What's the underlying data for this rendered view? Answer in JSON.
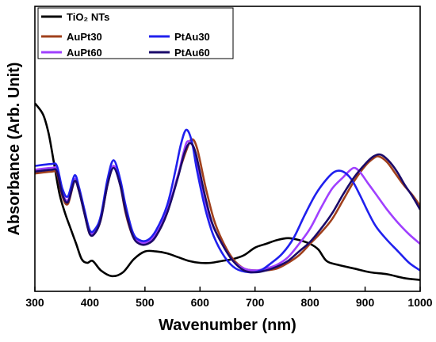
{
  "chart_data": {
    "type": "line",
    "title": "",
    "xlabel": "Wavenumber (nm)",
    "ylabel": "Absorbance (Arb. Unit)",
    "xlim": [
      300,
      1000
    ],
    "ylim": [
      0,
      1
    ],
    "xticks": [
      300,
      400,
      500,
      600,
      700,
      800,
      900,
      1000
    ],
    "yticks_shown": false,
    "grid": false,
    "legend_position": "top-left",
    "series": [
      {
        "name": "TiO₂ NTs",
        "color": "#000000",
        "points": [
          [
            300,
            0.94
          ],
          [
            315,
            0.88
          ],
          [
            325,
            0.78
          ],
          [
            335,
            0.62
          ],
          [
            345,
            0.46
          ],
          [
            355,
            0.36
          ],
          [
            365,
            0.28
          ],
          [
            375,
            0.2
          ],
          [
            385,
            0.12
          ],
          [
            395,
            0.1
          ],
          [
            405,
            0.11
          ],
          [
            420,
            0.06
          ],
          [
            440,
            0.03
          ],
          [
            460,
            0.05
          ],
          [
            480,
            0.12
          ],
          [
            500,
            0.16
          ],
          [
            520,
            0.16
          ],
          [
            540,
            0.15
          ],
          [
            560,
            0.13
          ],
          [
            580,
            0.11
          ],
          [
            600,
            0.1
          ],
          [
            620,
            0.1
          ],
          [
            640,
            0.11
          ],
          [
            660,
            0.12
          ],
          [
            680,
            0.14
          ],
          [
            700,
            0.18
          ],
          [
            720,
            0.2
          ],
          [
            740,
            0.22
          ],
          [
            760,
            0.23
          ],
          [
            780,
            0.22
          ],
          [
            800,
            0.2
          ],
          [
            815,
            0.17
          ],
          [
            830,
            0.11
          ],
          [
            850,
            0.09
          ],
          [
            880,
            0.07
          ],
          [
            910,
            0.05
          ],
          [
            940,
            0.04
          ],
          [
            970,
            0.02
          ],
          [
            1000,
            0.01
          ]
        ]
      },
      {
        "name": "AuPt30",
        "color": "#a0401c",
        "points": [
          [
            300,
            0.57
          ],
          [
            330,
            0.58
          ],
          [
            340,
            0.57
          ],
          [
            350,
            0.45
          ],
          [
            360,
            0.41
          ],
          [
            372,
            0.53
          ],
          [
            380,
            0.48
          ],
          [
            390,
            0.36
          ],
          [
            400,
            0.25
          ],
          [
            410,
            0.26
          ],
          [
            420,
            0.33
          ],
          [
            432,
            0.51
          ],
          [
            443,
            0.61
          ],
          [
            455,
            0.51
          ],
          [
            465,
            0.36
          ],
          [
            478,
            0.24
          ],
          [
            490,
            0.2
          ],
          [
            505,
            0.2
          ],
          [
            520,
            0.24
          ],
          [
            540,
            0.36
          ],
          [
            560,
            0.56
          ],
          [
            575,
            0.69
          ],
          [
            585,
            0.75
          ],
          [
            595,
            0.7
          ],
          [
            610,
            0.5
          ],
          [
            625,
            0.33
          ],
          [
            640,
            0.22
          ],
          [
            660,
            0.12
          ],
          [
            680,
            0.07
          ],
          [
            700,
            0.06
          ],
          [
            720,
            0.06
          ],
          [
            740,
            0.07
          ],
          [
            760,
            0.1
          ],
          [
            780,
            0.14
          ],
          [
            800,
            0.2
          ],
          [
            820,
            0.26
          ],
          [
            840,
            0.33
          ],
          [
            860,
            0.43
          ],
          [
            880,
            0.53
          ],
          [
            900,
            0.61
          ],
          [
            915,
            0.65
          ],
          [
            925,
            0.66
          ],
          [
            940,
            0.63
          ],
          [
            955,
            0.57
          ],
          [
            970,
            0.51
          ],
          [
            985,
            0.46
          ],
          [
            1000,
            0.4
          ]
        ]
      },
      {
        "name": "AuPt60",
        "color": "#a040ff",
        "points": [
          [
            300,
            0.59
          ],
          [
            330,
            0.6
          ],
          [
            340,
            0.59
          ],
          [
            350,
            0.47
          ],
          [
            360,
            0.43
          ],
          [
            372,
            0.54
          ],
          [
            380,
            0.49
          ],
          [
            390,
            0.37
          ],
          [
            400,
            0.26
          ],
          [
            410,
            0.27
          ],
          [
            420,
            0.34
          ],
          [
            432,
            0.52
          ],
          [
            443,
            0.61
          ],
          [
            455,
            0.52
          ],
          [
            465,
            0.38
          ],
          [
            478,
            0.25
          ],
          [
            490,
            0.21
          ],
          [
            505,
            0.21
          ],
          [
            520,
            0.25
          ],
          [
            540,
            0.37
          ],
          [
            560,
            0.56
          ],
          [
            570,
            0.68
          ],
          [
            578,
            0.74
          ],
          [
            590,
            0.69
          ],
          [
            605,
            0.49
          ],
          [
            620,
            0.32
          ],
          [
            640,
            0.2
          ],
          [
            660,
            0.11
          ],
          [
            680,
            0.07
          ],
          [
            700,
            0.06
          ],
          [
            720,
            0.07
          ],
          [
            740,
            0.09
          ],
          [
            760,
            0.13
          ],
          [
            780,
            0.2
          ],
          [
            800,
            0.28
          ],
          [
            820,
            0.39
          ],
          [
            840,
            0.49
          ],
          [
            860,
            0.55
          ],
          [
            870,
            0.58
          ],
          [
            880,
            0.6
          ],
          [
            890,
            0.58
          ],
          [
            905,
            0.52
          ],
          [
            920,
            0.46
          ],
          [
            940,
            0.38
          ],
          [
            960,
            0.31
          ],
          [
            980,
            0.25
          ],
          [
            1000,
            0.2
          ]
        ]
      },
      {
        "name": "PtAu30",
        "color": "#2020ee",
        "points": [
          [
            300,
            0.61
          ],
          [
            330,
            0.62
          ],
          [
            340,
            0.61
          ],
          [
            350,
            0.49
          ],
          [
            360,
            0.45
          ],
          [
            372,
            0.56
          ],
          [
            380,
            0.5
          ],
          [
            390,
            0.38
          ],
          [
            400,
            0.27
          ],
          [
            410,
            0.28
          ],
          [
            420,
            0.35
          ],
          [
            432,
            0.54
          ],
          [
            443,
            0.64
          ],
          [
            455,
            0.54
          ],
          [
            465,
            0.4
          ],
          [
            478,
            0.26
          ],
          [
            490,
            0.22
          ],
          [
            505,
            0.22
          ],
          [
            520,
            0.27
          ],
          [
            540,
            0.4
          ],
          [
            555,
            0.58
          ],
          [
            565,
            0.72
          ],
          [
            575,
            0.8
          ],
          [
            585,
            0.74
          ],
          [
            595,
            0.58
          ],
          [
            610,
            0.38
          ],
          [
            625,
            0.24
          ],
          [
            645,
            0.13
          ],
          [
            665,
            0.07
          ],
          [
            690,
            0.05
          ],
          [
            710,
            0.06
          ],
          [
            730,
            0.1
          ],
          [
            750,
            0.15
          ],
          [
            770,
            0.23
          ],
          [
            790,
            0.35
          ],
          [
            810,
            0.46
          ],
          [
            830,
            0.54
          ],
          [
            845,
            0.58
          ],
          [
            860,
            0.58
          ],
          [
            875,
            0.54
          ],
          [
            890,
            0.46
          ],
          [
            905,
            0.37
          ],
          [
            920,
            0.29
          ],
          [
            940,
            0.22
          ],
          [
            960,
            0.16
          ],
          [
            980,
            0.1
          ],
          [
            1000,
            0.06
          ]
        ]
      },
      {
        "name": "PtAu60",
        "color": "#1a0a6a",
        "points": [
          [
            300,
            0.58
          ],
          [
            330,
            0.59
          ],
          [
            340,
            0.58
          ],
          [
            350,
            0.46
          ],
          [
            360,
            0.42
          ],
          [
            372,
            0.53
          ],
          [
            380,
            0.48
          ],
          [
            390,
            0.36
          ],
          [
            400,
            0.25
          ],
          [
            410,
            0.26
          ],
          [
            420,
            0.33
          ],
          [
            432,
            0.51
          ],
          [
            443,
            0.6
          ],
          [
            455,
            0.51
          ],
          [
            465,
            0.37
          ],
          [
            478,
            0.24
          ],
          [
            490,
            0.2
          ],
          [
            505,
            0.2
          ],
          [
            520,
            0.24
          ],
          [
            540,
            0.36
          ],
          [
            560,
            0.55
          ],
          [
            572,
            0.68
          ],
          [
            582,
            0.73
          ],
          [
            592,
            0.68
          ],
          [
            607,
            0.48
          ],
          [
            622,
            0.31
          ],
          [
            640,
            0.2
          ],
          [
            660,
            0.11
          ],
          [
            680,
            0.06
          ],
          [
            700,
            0.05
          ],
          [
            720,
            0.06
          ],
          [
            740,
            0.08
          ],
          [
            760,
            0.11
          ],
          [
            780,
            0.16
          ],
          [
            800,
            0.21
          ],
          [
            820,
            0.28
          ],
          [
            840,
            0.36
          ],
          [
            860,
            0.46
          ],
          [
            880,
            0.55
          ],
          [
            900,
            0.62
          ],
          [
            915,
            0.66
          ],
          [
            928,
            0.67
          ],
          [
            942,
            0.64
          ],
          [
            958,
            0.58
          ],
          [
            972,
            0.51
          ],
          [
            986,
            0.45
          ],
          [
            1000,
            0.38
          ]
        ]
      }
    ]
  }
}
